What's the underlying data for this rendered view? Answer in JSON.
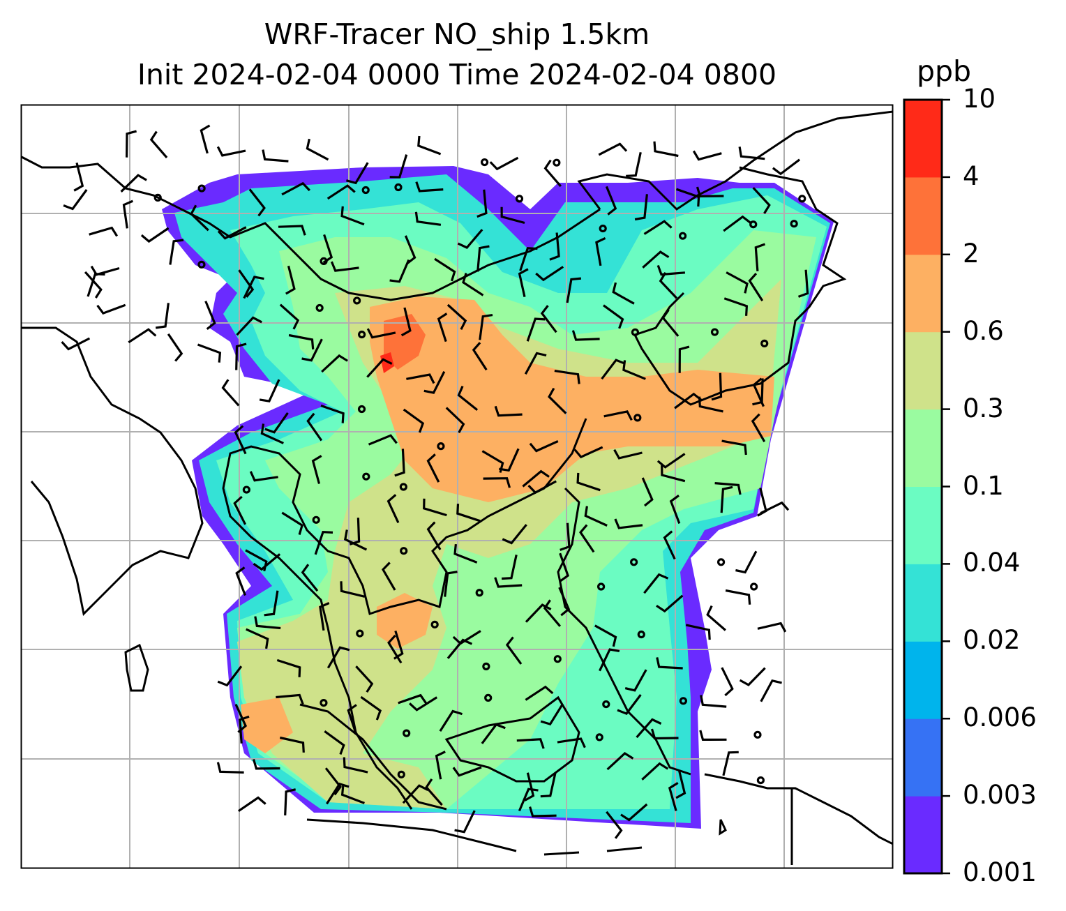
{
  "chart_data": {
    "type": "heatmap",
    "title_line1": "WRF-Tracer NO_ship 1.5km",
    "title_line2": "Init 2024-02-04 0000 Time 2024-02-04 0800",
    "variable": "NO_ship",
    "colorbar": {
      "unit": "ppb",
      "levels": [
        "0.001",
        "0.003",
        "0.006",
        "0.02",
        "0.04",
        "0.1",
        "0.3",
        "0.6",
        "2",
        "4",
        "10"
      ],
      "colors": [
        "#6a2bff",
        "#3672f4",
        "#00b4ec",
        "#34e2d6",
        "#6bfcc2",
        "#9afba0",
        "#cfe28a",
        "#fdb062",
        "#fe7239",
        "#ff2a18"
      ]
    },
    "grid": true,
    "overlays": [
      "coastlines",
      "wind-barbs"
    ]
  }
}
